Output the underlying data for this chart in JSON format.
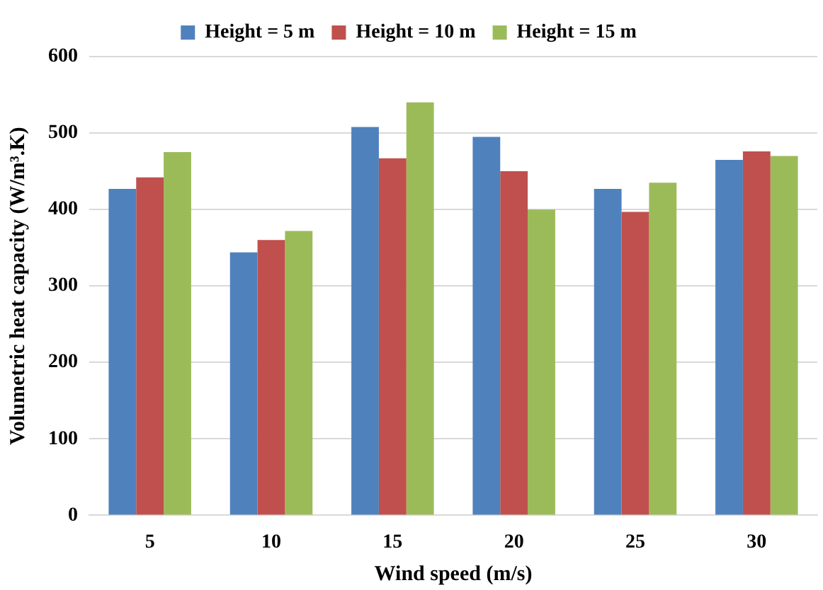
{
  "chart_data": {
    "type": "bar",
    "xlabel": "Wind speed (m/s)",
    "ylabel": "Volumetric heat capacity (W/m³.K)",
    "categories": [
      "5",
      "10",
      "15",
      "20",
      "25",
      "30"
    ],
    "series": [
      {
        "name": "Height = 5 m",
        "color": "#4f81bd",
        "values": [
          427,
          344,
          508,
          495,
          427,
          465
        ]
      },
      {
        "name": "Height = 10 m",
        "color": "#c0504d",
        "values": [
          442,
          360,
          467,
          450,
          397,
          476
        ]
      },
      {
        "name": "Height = 15 m",
        "color": "#9bbb59",
        "values": [
          475,
          372,
          540,
          400,
          435,
          470
        ]
      }
    ],
    "ylim": [
      0,
      600
    ],
    "yticks": [
      0,
      100,
      200,
      300,
      400,
      500,
      600
    ],
    "grid": "y",
    "legend": "top"
  }
}
